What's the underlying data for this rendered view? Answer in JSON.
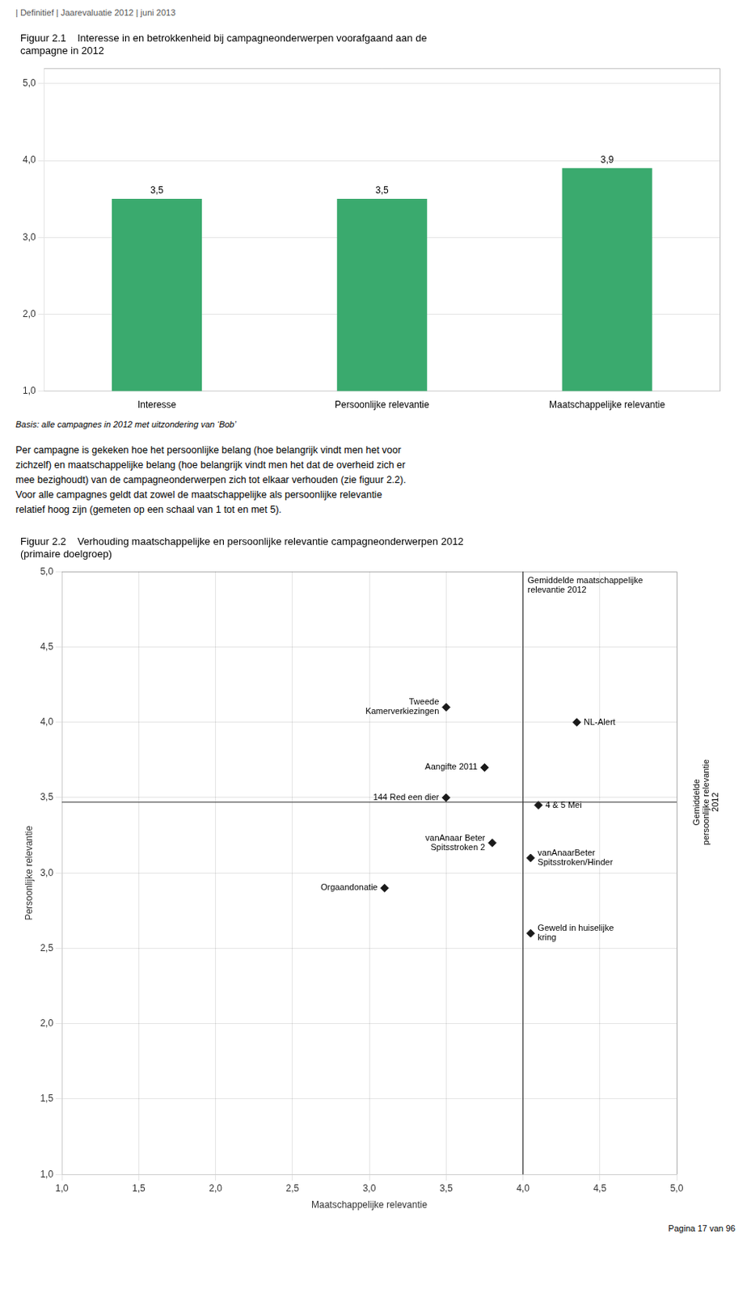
{
  "header": "| Definitief | Jaarevaluatie 2012 | juni 2013",
  "body": [
    "Per campagne is gekeken hoe het persoonlijke belang (hoe belangrijk vindt men het voor",
    "zichzelf) en maatschappelijke belang (hoe belangrijk vindt men het dat de overheid zich er",
    "mee bezighoudt) van de campagneonderwerpen zich tot elkaar verhouden (zie figuur 2.2).",
    "Voor alle campagnes geldt dat zowel de maatschappelijke als persoonlijke relevantie",
    "relatief hoog zijn (gemeten op een schaal van 1 tot en met 5)."
  ],
  "footer": "Pagina 17 van 96",
  "chart_data": [
    {
      "type": "bar",
      "title": [
        "Figuur 2.1    Interesse in en betrokkenheid bij campagneonderwerpen voorafgaand aan de",
        "campagne in 2012"
      ],
      "categories": [
        "Interesse",
        "Persoonlijke relevantie",
        "Maatschappelijke relevantie"
      ],
      "values": [
        3.5,
        3.5,
        3.9
      ],
      "value_labels": [
        "3,5",
        "3,5",
        "3,9"
      ],
      "data_labels": true,
      "color": "#3aaa6e",
      "ylim": [
        1.0,
        5.2
      ],
      "yticks": [
        {
          "value": 1.0,
          "label": "1,0"
        },
        {
          "value": 2.0,
          "label": "2,0"
        },
        {
          "value": 3.0,
          "label": "3,0"
        },
        {
          "value": 4.0,
          "label": "4,0"
        },
        {
          "value": 5.0,
          "label": "5,0"
        }
      ],
      "grid": true,
      "caption": "Basis: alle campagnes in 2012 met uitzondering van ‘Bob’"
    },
    {
      "type": "scatter",
      "title": [
        "Figuur 2.2    Verhouding maatschappelijke en persoonlijke relevantie campagneonderwerpen 2012",
        "(primaire doelgroep)"
      ],
      "x": [
        3.5,
        4.35,
        3.75,
        3.5,
        4.1,
        3.8,
        4.05,
        3.1,
        4.05
      ],
      "values": [
        4.1,
        4.0,
        3.7,
        3.5,
        3.45,
        3.2,
        3.1,
        2.9,
        2.6
      ],
      "point_labels": [
        "Tweede\nKamerverkiezingen",
        "NL-Alert",
        "Aangifte 2011",
        "144 Red een dier",
        "4 & 5 Mei",
        "vanAnaar Beter\nSpitsstroken 2",
        "vanAnaarBeter\nSpitsstroken/Hinder",
        "Orgaandonatie",
        "Geweld in huiselijke\nkring"
      ],
      "color": "#1a1a1a",
      "marker": "diamond",
      "xlim": [
        1.0,
        5.0
      ],
      "ylim": [
        1.0,
        5.0
      ],
      "xticks": [
        {
          "value": 1.0,
          "label": "1,0"
        },
        {
          "value": 1.5,
          "label": "1,5"
        },
        {
          "value": 2.0,
          "label": "2,0"
        },
        {
          "value": 2.5,
          "label": "2,5"
        },
        {
          "value": 3.0,
          "label": "3,0"
        },
        {
          "value": 3.5,
          "label": "3,5"
        },
        {
          "value": 4.0,
          "label": "4,0"
        },
        {
          "value": 4.5,
          "label": "4,5"
        },
        {
          "value": 5.0,
          "label": "5,0"
        }
      ],
      "yticks": [
        {
          "value": 1.0,
          "label": "1,0"
        },
        {
          "value": 1.5,
          "label": "1,5"
        },
        {
          "value": 2.0,
          "label": "2,0"
        },
        {
          "value": 2.5,
          "label": "2,5"
        },
        {
          "value": 3.0,
          "label": "3,0"
        },
        {
          "value": 3.5,
          "label": "3,5"
        },
        {
          "value": 4.0,
          "label": "4,0"
        },
        {
          "value": 4.5,
          "label": "4,5"
        },
        {
          "value": 5.0,
          "label": "5,0"
        }
      ],
      "x_label": "Maatschappelijke relevantie",
      "y_label": "Persoonlijke relevantie",
      "grid": true,
      "annotations": [
        {
          "type": "vline",
          "x": 4.0,
          "label": "Gemiddelde maatschappelijke\nrelevantie 2012"
        },
        {
          "type": "hline",
          "y": 3.47,
          "label": "Gemiddelde\npersoonlijke relevantie\n2012"
        }
      ]
    }
  ]
}
